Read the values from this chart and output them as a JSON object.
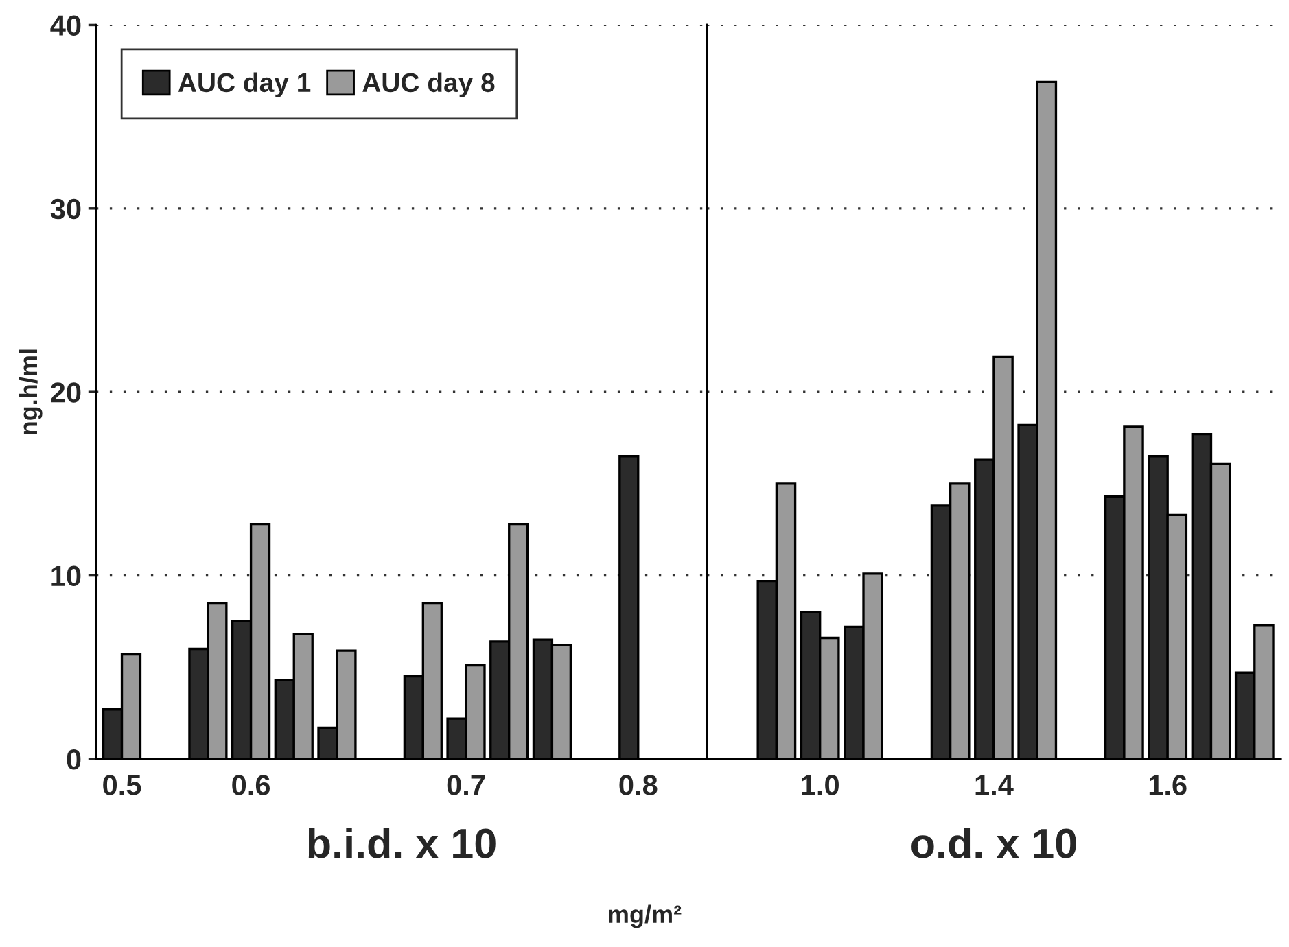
{
  "chart_data": [
    {
      "type": "bar",
      "xlabel": "b.i.d. x 10",
      "ylabel": "ng.h/ml",
      "annotations": [
        "mg/m²"
      ],
      "categories": [
        "0.5",
        null,
        null,
        "0.6",
        null,
        null,
        null,
        null,
        "0.7",
        null,
        null,
        null,
        "0.8",
        null
      ],
      "series": [
        {
          "name": "AUC day 1",
          "color": "#2b2b2b",
          "values": [
            2.7,
            null,
            6.0,
            7.5,
            4.3,
            1.7,
            null,
            4.5,
            2.2,
            6.4,
            6.5,
            null,
            16.5,
            null
          ]
        },
        {
          "name": "AUC day 8",
          "color": "#9a9a9a",
          "values": [
            5.7,
            null,
            8.5,
            12.8,
            6.8,
            5.9,
            null,
            8.5,
            5.1,
            12.8,
            6.2,
            null,
            null,
            null
          ]
        }
      ],
      "ylim": [
        0,
        40
      ],
      "yticks": [
        0,
        10,
        20,
        30,
        40
      ],
      "grid": "y",
      "legend": "top left"
    },
    {
      "type": "bar",
      "xlabel": "o.d. x 10",
      "categories": [
        null,
        null,
        "1.0",
        null,
        null,
        null,
        "1.4",
        null,
        null,
        null,
        "1.6",
        null,
        null
      ],
      "series": [
        {
          "color": "#2b2b2b",
          "values": [
            null,
            9.7,
            8.0,
            7.2,
            null,
            13.8,
            16.3,
            18.2,
            null,
            14.3,
            16.5,
            17.7,
            4.7
          ]
        },
        {
          "color": "#9a9a9a",
          "values": [
            null,
            15.0,
            6.6,
            10.1,
            null,
            15.0,
            21.9,
            36.9,
            null,
            18.1,
            13.3,
            16.1,
            7.3
          ]
        }
      ],
      "ylim": [
        0,
        40
      ],
      "yticks": [
        0,
        10,
        20,
        30,
        40
      ],
      "grid": "y",
      "tick_labels": "x"
    }
  ]
}
